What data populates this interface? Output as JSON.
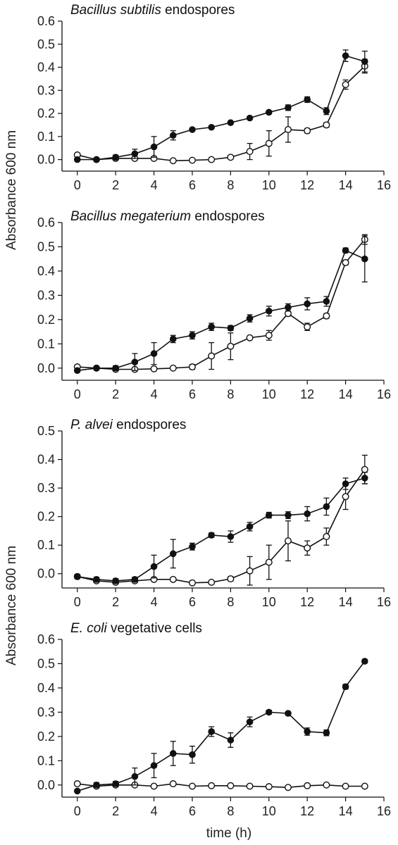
{
  "figure": {
    "ylabel": "Absorbance 600 nm",
    "xlabel": "time (h)"
  },
  "chart_data": [
    {
      "type": "line",
      "title_italic": "Bacillus subtilis",
      "title_rest": " endospores",
      "xlim": [
        -0.8,
        16
      ],
      "ylim": [
        -0.05,
        0.6
      ],
      "xticks": [
        0,
        2,
        4,
        6,
        8,
        10,
        12,
        14,
        16
      ],
      "yticks": [
        0.0,
        0.1,
        0.2,
        0.3,
        0.4,
        0.5,
        0.6
      ],
      "ytick_labels": [
        "0.0",
        "0.1",
        "0.2",
        "0.3",
        "0.4",
        "0.5",
        "0.6"
      ],
      "x": [
        0,
        1,
        2,
        3,
        4,
        5,
        6,
        7,
        8,
        9,
        10,
        11,
        12,
        13,
        14,
        15
      ],
      "series": [
        {
          "marker": "filled",
          "values": [
            0.0,
            0.0,
            0.01,
            0.025,
            0.055,
            0.105,
            0.13,
            0.14,
            0.16,
            0.18,
            0.205,
            0.225,
            0.26,
            0.21,
            0.45,
            0.425
          ],
          "errors": [
            0.005,
            0.005,
            0.01,
            0.02,
            0.045,
            0.02,
            0.005,
            0.005,
            0.005,
            0.005,
            0.005,
            0.012,
            0.012,
            0.015,
            0.025,
            0.045
          ]
        },
        {
          "marker": "open",
          "values": [
            0.02,
            0.0,
            0.005,
            0.005,
            0.005,
            -0.005,
            -0.003,
            0.0,
            0.01,
            0.035,
            0.07,
            0.13,
            0.125,
            0.15,
            0.325,
            0.405
          ],
          "errors": [
            0.005,
            0.005,
            0.005,
            0.005,
            0.005,
            0.003,
            0.003,
            0.005,
            0.007,
            0.035,
            0.055,
            0.055,
            0.01,
            0.01,
            0.02,
            0.03
          ]
        }
      ]
    },
    {
      "type": "line",
      "title_italic": "Bacillus megaterium",
      "title_rest": " endospores",
      "xlim": [
        -0.8,
        16
      ],
      "ylim": [
        -0.05,
        0.6
      ],
      "xticks": [
        0,
        2,
        4,
        6,
        8,
        10,
        12,
        14,
        16
      ],
      "yticks": [
        0.0,
        0.1,
        0.2,
        0.3,
        0.4,
        0.5,
        0.6
      ],
      "ytick_labels": [
        "0.0",
        "0.1",
        "0.2",
        "0.3",
        "0.4",
        "0.5",
        "0.6"
      ],
      "x": [
        0,
        1,
        2,
        3,
        4,
        5,
        6,
        7,
        8,
        9,
        10,
        11,
        12,
        13,
        14,
        15
      ],
      "series": [
        {
          "marker": "filled",
          "values": [
            -0.01,
            0.0,
            0.0,
            0.025,
            0.06,
            0.12,
            0.135,
            0.17,
            0.165,
            0.205,
            0.235,
            0.25,
            0.265,
            0.275,
            0.485,
            0.45
          ],
          "errors": [
            0.005,
            0.005,
            0.01,
            0.035,
            0.045,
            0.015,
            0.015,
            0.015,
            0.01,
            0.015,
            0.02,
            0.015,
            0.025,
            0.02,
            0.01,
            0.095
          ]
        },
        {
          "marker": "open",
          "values": [
            0.005,
            0.0,
            -0.005,
            -0.005,
            -0.003,
            0.0,
            0.005,
            0.05,
            0.09,
            0.125,
            0.135,
            0.225,
            0.17,
            0.215,
            0.435,
            0.53
          ],
          "errors": [
            0.005,
            0.005,
            0.005,
            0.005,
            0.003,
            0.003,
            0.01,
            0.055,
            0.055,
            0.005,
            0.02,
            0.01,
            0.015,
            0.01,
            0.01,
            0.02
          ]
        }
      ]
    },
    {
      "type": "line",
      "title_italic": "P. alvei",
      "title_rest": " endospores",
      "xlim": [
        -0.8,
        16
      ],
      "ylim": [
        -0.05,
        0.5
      ],
      "xticks": [
        0,
        2,
        4,
        6,
        8,
        10,
        12,
        14,
        16
      ],
      "yticks": [
        0.0,
        0.1,
        0.2,
        0.3,
        0.4,
        0.5
      ],
      "ytick_labels": [
        "0.0",
        "0.1",
        "0.2",
        "0.3",
        "0.4",
        "0.5"
      ],
      "x": [
        0,
        1,
        2,
        3,
        4,
        5,
        6,
        7,
        8,
        9,
        10,
        11,
        12,
        13,
        14,
        15
      ],
      "series": [
        {
          "marker": "filled",
          "values": [
            -0.01,
            -0.02,
            -0.025,
            -0.02,
            0.025,
            0.07,
            0.095,
            0.135,
            0.13,
            0.165,
            0.205,
            0.205,
            0.21,
            0.235,
            0.315,
            0.335
          ],
          "errors": [
            0.008,
            0.008,
            0.008,
            0.008,
            0.04,
            0.05,
            0.012,
            0.008,
            0.02,
            0.015,
            0.01,
            0.012,
            0.025,
            0.03,
            0.02,
            0.02
          ]
        },
        {
          "marker": "open",
          "values": [
            -0.01,
            -0.025,
            -0.03,
            -0.025,
            -0.02,
            -0.02,
            -0.032,
            -0.03,
            -0.018,
            0.01,
            0.04,
            0.115,
            0.09,
            0.13,
            0.27,
            0.365
          ],
          "errors": [
            0.005,
            0.005,
            0.005,
            0.005,
            0.005,
            0.005,
            0.005,
            0.005,
            0.008,
            0.05,
            0.06,
            0.07,
            0.025,
            0.03,
            0.045,
            0.05
          ]
        }
      ]
    },
    {
      "type": "line",
      "title_italic": "E. coli",
      "title_rest": " vegetative cells",
      "xlim": [
        -0.8,
        16
      ],
      "ylim": [
        -0.05,
        0.6
      ],
      "xticks": [
        0,
        2,
        4,
        6,
        8,
        10,
        12,
        14,
        16
      ],
      "yticks": [
        0.0,
        0.1,
        0.2,
        0.3,
        0.4,
        0.5,
        0.6
      ],
      "ytick_labels": [
        "0.0",
        "0.1",
        "0.2",
        "0.3",
        "0.4",
        "0.5",
        "0.6"
      ],
      "x": [
        0,
        1,
        2,
        3,
        4,
        5,
        6,
        7,
        8,
        9,
        10,
        11,
        12,
        13,
        14,
        15
      ],
      "series": [
        {
          "marker": "filled",
          "values": [
            -0.025,
            0.0,
            0.005,
            0.035,
            0.08,
            0.13,
            0.125,
            0.22,
            0.185,
            0.26,
            0.3,
            0.295,
            0.22,
            0.215,
            0.405,
            0.51
          ],
          "errors": [
            0.005,
            0.01,
            0.01,
            0.035,
            0.05,
            0.05,
            0.035,
            0.02,
            0.03,
            0.02,
            0.008,
            0.008,
            0.015,
            0.012,
            0.01,
            0.008
          ]
        },
        {
          "marker": "open",
          "values": [
            0.005,
            -0.005,
            0.0,
            0.0,
            -0.005,
            0.005,
            -0.005,
            -0.003,
            -0.003,
            -0.005,
            -0.007,
            -0.01,
            -0.003,
            0.0,
            -0.005,
            -0.005
          ],
          "errors": [
            0.003,
            0.003,
            0.003,
            0.003,
            0.003,
            0.003,
            0.003,
            0.003,
            0.003,
            0.003,
            0.003,
            0.003,
            0.003,
            0.003,
            0.003,
            0.003
          ]
        }
      ]
    }
  ]
}
